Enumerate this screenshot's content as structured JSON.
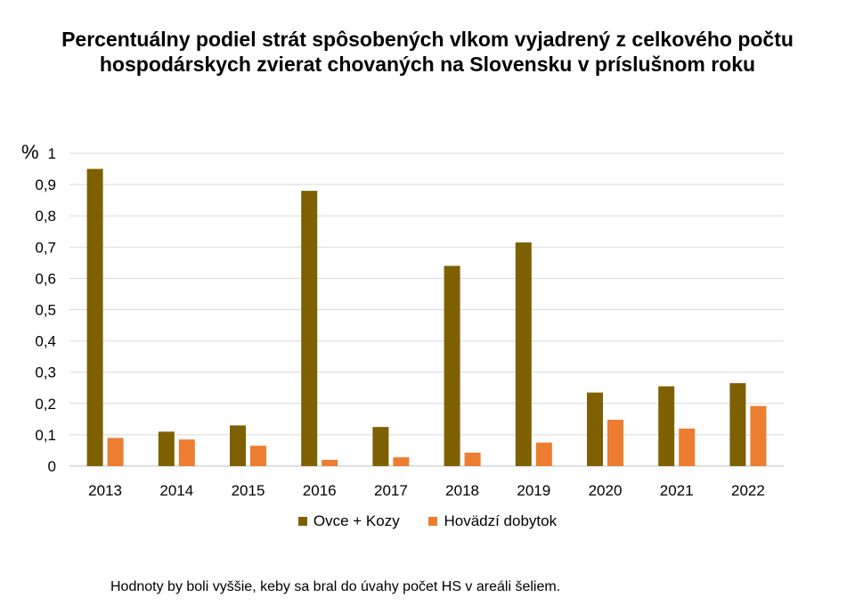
{
  "chart_data": {
    "type": "bar",
    "title": "Percentuálny podiel strát spôsobených vlkom vyjadrený z celkového počtu hospodárskych zvierat chovaných na Slovensku v príslušnom roku",
    "ylabel": "%",
    "ylim": [
      0,
      1
    ],
    "yticks": [
      "0",
      "0,1",
      "0,2",
      "0,3",
      "0,4",
      "0,5",
      "0,6",
      "0,7",
      "0,8",
      "0,9",
      "1"
    ],
    "categories": [
      "2013",
      "2014",
      "2015",
      "2016",
      "2017",
      "2018",
      "2019",
      "2020",
      "2021",
      "2022"
    ],
    "series": [
      {
        "name": "Ovce + Kozy",
        "color": "#7f6000",
        "values": [
          0.95,
          0.11,
          0.13,
          0.88,
          0.125,
          0.64,
          0.715,
          0.235,
          0.255,
          0.265
        ]
      },
      {
        "name": "Hovädzí dobytok",
        "color": "#ed7d31",
        "values": [
          0.09,
          0.085,
          0.065,
          0.02,
          0.028,
          0.043,
          0.075,
          0.148,
          0.12,
          0.192
        ]
      }
    ],
    "grid": true,
    "legend_position": "bottom"
  },
  "footnote": "Hodnoty by boli vyššie, keby sa bral do úvahy počet HS v areáli šeliem."
}
